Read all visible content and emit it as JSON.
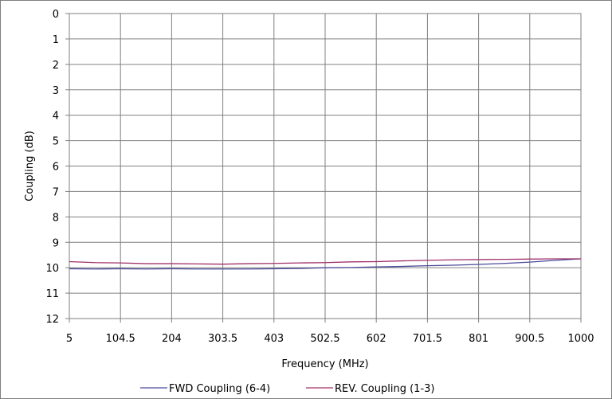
{
  "chart_data": {
    "type": "line",
    "title": "",
    "xlabel": "Frequency (MHz)",
    "ylabel": "Coupling (dB)",
    "x_ticks": [
      "5",
      "104.5",
      "204",
      "303.5",
      "403",
      "502.5",
      "602",
      "701.5",
      "801",
      "900.5",
      "1000"
    ],
    "y_ticks": [
      "0",
      "1",
      "2",
      "3",
      "4",
      "5",
      "6",
      "7",
      "8",
      "9",
      "10",
      "11",
      "12"
    ],
    "xlim": [
      5,
      1000
    ],
    "ylim": [
      0,
      12
    ],
    "y_inverted": true,
    "grid": true,
    "legend_position": "bottom",
    "x": [
      5,
      54.75,
      104.5,
      154.25,
      204,
      253.75,
      303.5,
      353.25,
      403,
      452.75,
      502.5,
      552.25,
      602,
      651.75,
      701.5,
      751.25,
      801,
      850.75,
      900.5,
      950.25,
      1000
    ],
    "series": [
      {
        "name": "FWD Coupling (6-4)",
        "color": "#4a4a9a",
        "values": [
          10.04,
          10.05,
          10.04,
          10.05,
          10.04,
          10.05,
          10.05,
          10.05,
          10.04,
          10.03,
          10.0,
          9.99,
          9.97,
          9.95,
          9.92,
          9.9,
          9.87,
          9.83,
          9.78,
          9.71,
          9.65
        ]
      },
      {
        "name": "REV. Coupling (1-3)",
        "color": "#a0306a",
        "values": [
          9.76,
          9.8,
          9.81,
          9.84,
          9.84,
          9.85,
          9.86,
          9.84,
          9.83,
          9.81,
          9.8,
          9.77,
          9.76,
          9.73,
          9.71,
          9.69,
          9.68,
          9.67,
          9.66,
          9.65,
          9.65
        ]
      }
    ]
  }
}
